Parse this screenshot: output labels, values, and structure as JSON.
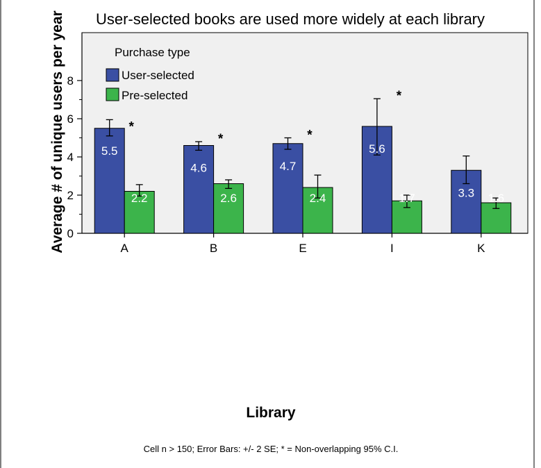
{
  "chart_data": {
    "type": "bar",
    "title": "User-selected books are used more widely at each library",
    "xlabel": "Library",
    "ylabel": "Average # of unique users per year",
    "categories": [
      "A",
      "B",
      "E",
      "I",
      "K"
    ],
    "ylim": [
      0,
      9
    ],
    "yticks": [
      0,
      2,
      4,
      6,
      8
    ],
    "legend_title": "Purchase type",
    "legend_position": "top-left",
    "grid": false,
    "series": [
      {
        "name": "User-selected",
        "color": "#3a4fa3",
        "values": [
          5.5,
          4.6,
          4.7,
          5.6,
          3.3
        ],
        "labels": [
          "5.5",
          "4.6",
          "4.7",
          "5.6",
          "3.3"
        ],
        "err_low": [
          5.1,
          4.35,
          4.4,
          4.1,
          2.6
        ],
        "err_high": [
          5.95,
          4.8,
          5.0,
          7.05,
          4.05
        ]
      },
      {
        "name": "Pre-selected",
        "color": "#3cb44b",
        "values": [
          2.2,
          2.6,
          2.4,
          1.7,
          1.6
        ],
        "labels": [
          "2.2",
          "2.6",
          "2.4",
          "1.7",
          "1.6"
        ],
        "err_low": [
          1.95,
          2.35,
          1.85,
          1.35,
          1.3
        ],
        "err_high": [
          2.55,
          2.8,
          3.05,
          2.0,
          1.85
        ]
      }
    ],
    "significance": [
      "*",
      "*",
      "*",
      "*",
      ""
    ],
    "footnote": "Cell n > 150; Error Bars: +/- 2 SE; * = Non-overlapping 95% C.I."
  }
}
